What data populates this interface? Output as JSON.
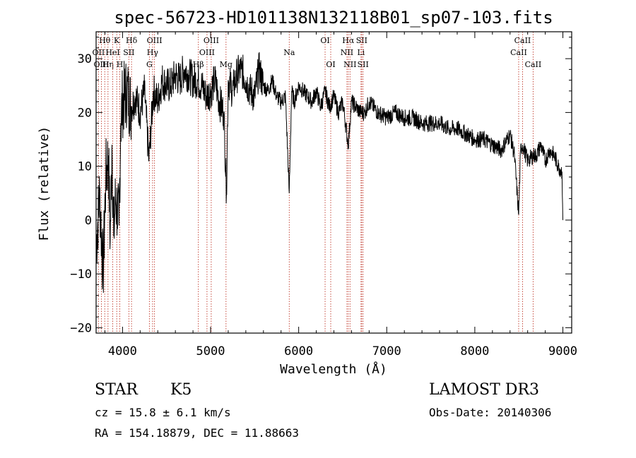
{
  "chart_data": {
    "type": "line",
    "title": "spec-56723-HD101138N132118B01_sp07-103.fits",
    "xlabel": "Wavelength (Å)",
    "ylabel": "Flux (relative)",
    "xlim": [
      3700,
      9100
    ],
    "ylim": [
      -21,
      35
    ],
    "xticks": [
      4000,
      5000,
      6000,
      7000,
      8000,
      9000
    ],
    "yticks": [
      -20,
      -10,
      0,
      10,
      20,
      30
    ],
    "grid": false,
    "series": [
      {
        "name": "spectrum",
        "x": [
          3700,
          3740,
          3780,
          3810,
          3840,
          3860,
          3880,
          3900,
          3920,
          3940,
          3960,
          3980,
          4000,
          4050,
          4100,
          4150,
          4200,
          4250,
          4300,
          4350,
          4400,
          4450,
          4500,
          4550,
          4600,
          4650,
          4700,
          4750,
          4800,
          4850,
          4900,
          4950,
          5000,
          5050,
          5100,
          5150,
          5180,
          5200,
          5250,
          5300,
          5350,
          5400,
          5450,
          5500,
          5550,
          5600,
          5650,
          5700,
          5750,
          5800,
          5850,
          5893,
          5920,
          5950,
          6000,
          6050,
          6100,
          6150,
          6200,
          6250,
          6300,
          6350,
          6400,
          6450,
          6500,
          6563,
          6600,
          6650,
          6700,
          6750,
          6800,
          6900,
          7000,
          7100,
          7200,
          7300,
          7400,
          7500,
          7600,
          7700,
          7800,
          7900,
          8000,
          8100,
          8200,
          8300,
          8400,
          8450,
          8498,
          8520,
          8542,
          8600,
          8662,
          8700,
          8750,
          8800,
          8850,
          8900,
          8950,
          8990,
          9000
        ],
        "y": [
          -5,
          5,
          -10,
          8,
          12,
          -4,
          14,
          -3,
          4,
          2,
          -1,
          18,
          22,
          24,
          21,
          23,
          20,
          24,
          11,
          24,
          22,
          26,
          25,
          25,
          27,
          26,
          28,
          27,
          26,
          26,
          25,
          23,
          24,
          26,
          22,
          20,
          5,
          26,
          24,
          27,
          28,
          26,
          24,
          23,
          28,
          25,
          24,
          26,
          23,
          22,
          23,
          5,
          24,
          22,
          25,
          24,
          23,
          22,
          24,
          21,
          24,
          21,
          23,
          20,
          22,
          14,
          22,
          21,
          20,
          20,
          22,
          20,
          19,
          20,
          19,
          19,
          18,
          18,
          18,
          17,
          17,
          16,
          15,
          15,
          14,
          13,
          16,
          12,
          1,
          13,
          14,
          11,
          12,
          12,
          14,
          11,
          13,
          12,
          10,
          9,
          0
        ]
      }
    ],
    "line_markers": [
      {
        "label": "Hθ",
        "wavelength": 3798,
        "row": 1
      },
      {
        "label": "OII",
        "wavelength": 3727,
        "row": 2
      },
      {
        "label": "OIII",
        "wavelength": 3760,
        "row": 3
      },
      {
        "label": "Hη",
        "wavelength": 3835,
        "row": 3
      },
      {
        "label": "HeI",
        "wavelength": 3889,
        "row": 2
      },
      {
        "label": "K",
        "wavelength": 3934,
        "row": 1
      },
      {
        "label": "H",
        "wavelength": 3969,
        "row": 3
      },
      {
        "label": "SII",
        "wavelength": 4072,
        "row": 2
      },
      {
        "label": "Hδ",
        "wavelength": 4102,
        "row": 1
      },
      {
        "label": "OIII",
        "wavelength": 4363,
        "row": 1
      },
      {
        "label": "Hγ",
        "wavelength": 4341,
        "row": 2
      },
      {
        "label": "G",
        "wavelength": 4305,
        "row": 3
      },
      {
        "label": "Hβ",
        "wavelength": 4861,
        "row": 3
      },
      {
        "label": "OIII",
        "wavelength": 5007,
        "row": 1
      },
      {
        "label": "OIII",
        "wavelength": 4959,
        "row": 2
      },
      {
        "label": "Mg",
        "wavelength": 5175,
        "row": 3
      },
      {
        "label": "Na",
        "wavelength": 5893,
        "row": 2
      },
      {
        "label": "OI",
        "wavelength": 6300,
        "row": 1
      },
      {
        "label": "OI",
        "wavelength": 6364,
        "row": 3
      },
      {
        "label": "Hα",
        "wavelength": 6563,
        "row": 1
      },
      {
        "label": "NII",
        "wavelength": 6548,
        "row": 2
      },
      {
        "label": "NII",
        "wavelength": 6583,
        "row": 3
      },
      {
        "label": "SII",
        "wavelength": 6716,
        "row": 1
      },
      {
        "label": "Li",
        "wavelength": 6708,
        "row": 2
      },
      {
        "label": "SII",
        "wavelength": 6731,
        "row": 3
      },
      {
        "label": "CaII",
        "wavelength": 8542,
        "row": 1
      },
      {
        "label": "CaII",
        "wavelength": 8498,
        "row": 2
      },
      {
        "label": "CaII",
        "wavelength": 8662,
        "row": 3
      }
    ],
    "colors": {
      "spectrum": "#000000",
      "marker": "#c0392b",
      "axes": "#000000"
    }
  },
  "info": {
    "object_class": "STAR",
    "subclass": "K5",
    "survey": "LAMOST DR3",
    "redshift_line": "cz = 15.8 ± 6.1 km/s",
    "obs_date": "Obs-Date: 20140306",
    "coordinates": "RA = 154.18879, DEC =  11.88663"
  }
}
